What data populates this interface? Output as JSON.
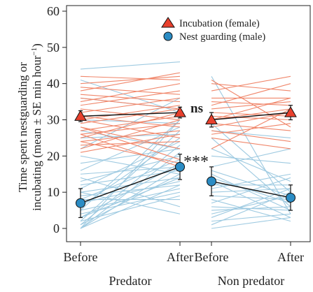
{
  "chart_data": {
    "type": "line",
    "ylabel_line1": "Time spent nestguarding or",
    "ylabel_line2_pre": "incubating (mean ± SE min hour",
    "ylabel_sup": "−1",
    "ylabel_line2_post": ")",
    "ylim": [
      0,
      60
    ],
    "yticks": [
      0,
      10,
      20,
      30,
      40,
      50,
      60
    ],
    "grid": false,
    "legend_position": "top-right",
    "groups": [
      {
        "name": "Predator",
        "xticks": [
          "Before",
          "After"
        ]
      },
      {
        "name": "Non predator",
        "xticks": [
          "Before",
          "After"
        ]
      }
    ],
    "colors": {
      "incubation_lines": "#f0866a",
      "guarding_lines": "#9ecae1",
      "incubation_marker": "#e8402d",
      "guarding_marker": "#2b8cc4",
      "mean_line": "#111111"
    },
    "series": [
      {
        "name": "Incubation (female)",
        "marker": "triangle",
        "means": [
          [
            31,
            32
          ],
          [
            30,
            32
          ]
        ],
        "se": [
          [
            1.5,
            1.5
          ],
          [
            2,
            2
          ]
        ]
      },
      {
        "name": "Nest guarding (male)",
        "marker": "circle",
        "means": [
          [
            7,
            17
          ],
          [
            13,
            8.5
          ]
        ],
        "se": [
          [
            4,
            3.5
          ],
          [
            4,
            3.5
          ]
        ]
      }
    ],
    "annotations": [
      {
        "text": "ns",
        "group": "Predator",
        "near": "Incubation (female)"
      },
      {
        "text": "***",
        "group": "Predator",
        "near": "Nest guarding (male)"
      }
    ],
    "individual_lines": {
      "Predator": {
        "incubation": [
          [
            42,
            41
          ],
          [
            40,
            42
          ],
          [
            38,
            43
          ],
          [
            37,
            35
          ],
          [
            35,
            40
          ],
          [
            34,
            38
          ],
          [
            33,
            30
          ],
          [
            32,
            36
          ],
          [
            31,
            28
          ],
          [
            30,
            34
          ],
          [
            30,
            25
          ],
          [
            29,
            33
          ],
          [
            28,
            22
          ],
          [
            27,
            31
          ],
          [
            26,
            29
          ],
          [
            25,
            32
          ],
          [
            24,
            27
          ],
          [
            23,
            24
          ],
          [
            22,
            30
          ],
          [
            21,
            26
          ],
          [
            24,
            18
          ],
          [
            28,
            19
          ],
          [
            26,
            17
          ],
          [
            36,
            33
          ],
          [
            39,
            37
          ]
        ],
        "guarding": [
          [
            44,
            46
          ],
          [
            41,
            32
          ],
          [
            36,
            33
          ],
          [
            30,
            29
          ],
          [
            27,
            22
          ],
          [
            25,
            26
          ],
          [
            22,
            36
          ],
          [
            20,
            15
          ],
          [
            18,
            22
          ],
          [
            16,
            28
          ],
          [
            15,
            17
          ],
          [
            14,
            6
          ],
          [
            13,
            20
          ],
          [
            12,
            16
          ],
          [
            11,
            24
          ],
          [
            10,
            14
          ],
          [
            9,
            12
          ],
          [
            8,
            19
          ],
          [
            7,
            13
          ],
          [
            6,
            25
          ],
          [
            5,
            11
          ],
          [
            4,
            10
          ],
          [
            3,
            14
          ],
          [
            2,
            9
          ],
          [
            1,
            15
          ],
          [
            0,
            17
          ],
          [
            0,
            12
          ],
          [
            0,
            21
          ],
          [
            1,
            23
          ],
          [
            2,
            27
          ],
          [
            3,
            18
          ],
          [
            5,
            30
          ],
          [
            8,
            8
          ],
          [
            10,
            4
          ],
          [
            0,
            30
          ]
        ]
      },
      "Non predator": {
        "incubation": [
          [
            40,
            38
          ],
          [
            38,
            42
          ],
          [
            36,
            36
          ],
          [
            35,
            34
          ],
          [
            34,
            40
          ],
          [
            33,
            35
          ],
          [
            32,
            31
          ],
          [
            31,
            30
          ],
          [
            30,
            33
          ],
          [
            29,
            27
          ],
          [
            28,
            32
          ],
          [
            27,
            24
          ],
          [
            26,
            29
          ],
          [
            25,
            22
          ],
          [
            22,
            33
          ],
          [
            30,
            36
          ],
          [
            41,
            28
          ]
        ],
        "guarding": [
          [
            42,
            4
          ],
          [
            29,
            10
          ],
          [
            27,
            25
          ],
          [
            25,
            6
          ],
          [
            22,
            13
          ],
          [
            20,
            18
          ],
          [
            17,
            22
          ],
          [
            16,
            9
          ],
          [
            15,
            5
          ],
          [
            14,
            7
          ],
          [
            13,
            3
          ],
          [
            12,
            12
          ],
          [
            11,
            15
          ],
          [
            10,
            11
          ],
          [
            9,
            8
          ],
          [
            8,
            2
          ],
          [
            7,
            14
          ],
          [
            6,
            5
          ],
          [
            5,
            6
          ],
          [
            4,
            9
          ],
          [
            3,
            11
          ],
          [
            2,
            4
          ],
          [
            1,
            10
          ],
          [
            0,
            3
          ]
        ]
      }
    }
  }
}
